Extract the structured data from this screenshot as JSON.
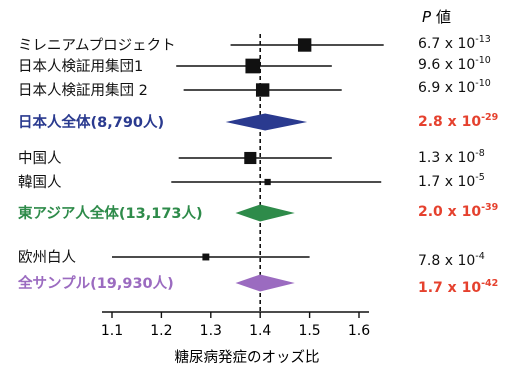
{
  "chart_data": {
    "type": "forest",
    "xlabel": "糖尿病発症のオッズ比",
    "p_header_symbol": "P",
    "p_header_text": "値",
    "xlim": [
      1.08,
      1.66
    ],
    "xticks": [
      "1.1",
      "1.2",
      "1.3",
      "1.4",
      "1.5",
      "1.6"
    ],
    "reference_line": 1.4,
    "colors": {
      "text": "#111111",
      "japan_total": "#2a3a8f",
      "east_asia_total": "#2e8b4a",
      "all_total": "#9b6bc0",
      "significant_p": "#e5412e"
    },
    "rows": [
      {
        "label": "ミレニアムプロジェクト",
        "kind": "study",
        "or": 1.49,
        "ci": [
          1.34,
          1.65
        ],
        "weight": 0.8,
        "p": {
          "mantissa": "6.7 x 10",
          "exp": "-13"
        },
        "color": "#111111"
      },
      {
        "label": "日本人検証用集団1",
        "kind": "study",
        "or": 1.385,
        "ci": [
          1.23,
          1.545
        ],
        "weight": 0.9,
        "p": {
          "mantissa": "9.6 x 10",
          "exp": "-10"
        },
        "color": "#111111"
      },
      {
        "label": "日本人検証用集団 2",
        "kind": "study",
        "or": 1.405,
        "ci": [
          1.245,
          1.565
        ],
        "weight": 0.8,
        "p": {
          "mantissa": "6.9 x 10",
          "exp": "-10"
        },
        "color": "#111111"
      },
      {
        "label": "日本人全体(8,790人)",
        "kind": "total",
        "or": 1.41,
        "ci": [
          1.33,
          1.495
        ],
        "p": {
          "mantissa": "2.8 x 10",
          "exp": "-29"
        },
        "color": "#2a3a8f",
        "p_color": "#e5412e"
      },
      {
        "label": "中国人",
        "kind": "study",
        "or": 1.38,
        "ci": [
          1.235,
          1.545
        ],
        "weight": 0.7,
        "p": {
          "mantissa": "1.3 x 10",
          "exp": "-8"
        },
        "color": "#111111"
      },
      {
        "label": "韓国人",
        "kind": "study",
        "or": 1.415,
        "ci": [
          1.22,
          1.645
        ],
        "weight": 0.25,
        "p": {
          "mantissa": "1.7 x 10",
          "exp": "-5"
        },
        "color": "#111111"
      },
      {
        "label": "東アジア人全体(13,173人)",
        "kind": "total",
        "or": 1.4,
        "ci": [
          1.35,
          1.47
        ],
        "p": {
          "mantissa": "2.0 x 10",
          "exp": "-39"
        },
        "color": "#2e8b4a",
        "p_color": "#e5412e"
      },
      {
        "label": "欧州白人",
        "kind": "study",
        "or": 1.29,
        "ci": [
          1.1,
          1.5
        ],
        "weight": 0.3,
        "p": {
          "mantissa": "7.8 x 10",
          "exp": "-4"
        },
        "color": "#111111"
      },
      {
        "label": "全サンプル(19,930人)",
        "kind": "total",
        "or": 1.4,
        "ci": [
          1.35,
          1.47
        ],
        "p": {
          "mantissa": "1.7 x 10",
          "exp": "-42"
        },
        "color": "#9b6bc0",
        "p_color": "#e5412e"
      }
    ]
  }
}
